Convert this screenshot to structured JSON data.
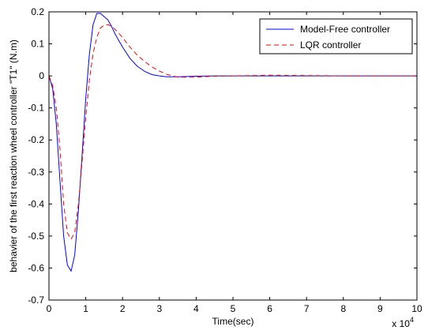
{
  "chart_data": {
    "type": "line",
    "title": "",
    "xlabel": "Time(sec)",
    "ylabel": "behavier of the first reaction wheel controller \"T1\" (N.m)",
    "x_multiplier_label": "x 10",
    "x_multiplier_exponent": "4",
    "xlim": [
      0,
      10
    ],
    "ylim": [
      -0.7,
      0.2
    ],
    "x_ticks": [
      "0",
      "1",
      "2",
      "3",
      "4",
      "5",
      "6",
      "7",
      "8",
      "9",
      "10"
    ],
    "y_ticks": [
      "0.2",
      "0.1",
      "0",
      "-0.1",
      "-0.2",
      "-0.3",
      "-0.4",
      "-0.5",
      "-0.6",
      "-0.7"
    ],
    "grid": false,
    "legend_position": "top-right",
    "series": [
      {
        "name": "Model-Free controller",
        "color": "#0000ff",
        "style": "solid",
        "x": [
          0,
          0.1,
          0.2,
          0.3,
          0.4,
          0.5,
          0.6,
          0.7,
          0.8,
          0.9,
          1.0,
          1.1,
          1.2,
          1.3,
          1.4,
          1.5,
          1.6,
          1.7,
          1.8,
          2.0,
          2.2,
          2.4,
          2.6,
          2.8,
          3.0,
          3.2,
          3.5,
          4.0,
          4.5,
          5.0,
          6.0,
          7.0,
          8.0,
          9.0,
          10.0
        ],
        "y": [
          0,
          -0.04,
          -0.15,
          -0.33,
          -0.5,
          -0.59,
          -0.61,
          -0.56,
          -0.42,
          -0.25,
          -0.07,
          0.07,
          0.16,
          0.195,
          0.195,
          0.185,
          0.175,
          0.155,
          0.13,
          0.09,
          0.055,
          0.03,
          0.014,
          0.004,
          0.0,
          -0.003,
          -0.003,
          -0.001,
          0.0,
          0.0,
          0.0,
          0.0,
          0.0,
          0.0,
          0.0
        ]
      },
      {
        "name": "LQR controller",
        "color": "#ff0000",
        "style": "dashed",
        "x": [
          0,
          0.1,
          0.2,
          0.3,
          0.4,
          0.5,
          0.6,
          0.7,
          0.8,
          0.9,
          1.0,
          1.1,
          1.2,
          1.3,
          1.4,
          1.5,
          1.6,
          1.7,
          1.8,
          2.0,
          2.2,
          2.4,
          2.6,
          2.8,
          3.0,
          3.2,
          3.5,
          4.0,
          4.5,
          5.0,
          6.0,
          7.0,
          8.0,
          9.0,
          10.0
        ],
        "y": [
          0,
          -0.03,
          -0.1,
          -0.23,
          -0.4,
          -0.49,
          -0.51,
          -0.49,
          -0.4,
          -0.27,
          -0.13,
          -0.01,
          0.07,
          0.12,
          0.15,
          0.158,
          0.16,
          0.155,
          0.145,
          0.12,
          0.09,
          0.065,
          0.045,
          0.028,
          0.015,
          0.005,
          -0.004,
          -0.004,
          -0.001,
          0.0,
          0.002,
          0.001,
          0.0,
          0.0,
          0.0
        ]
      }
    ]
  }
}
